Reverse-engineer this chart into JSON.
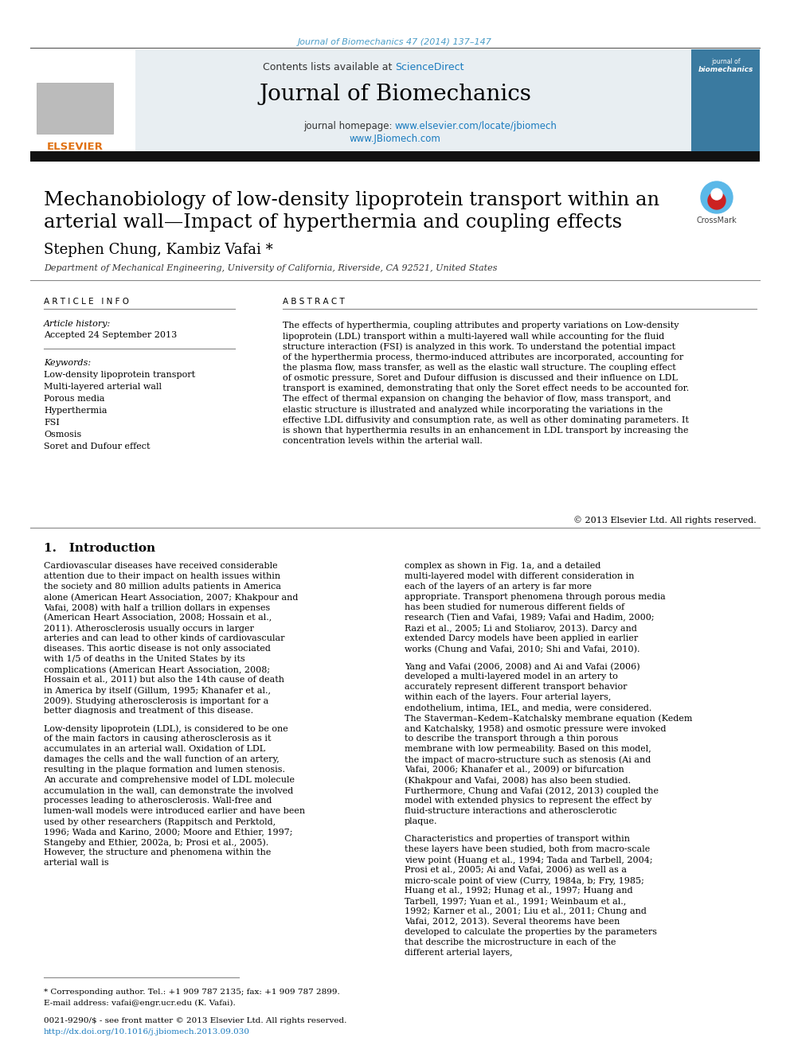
{
  "page_bg": "#ffffff",
  "top_journal_text": "Journal of Biomechanics 47 (2014) 137–147",
  "top_journal_color": "#4a9cc7",
  "header_bg": "#e8eef2",
  "header_contents": "Contents lists available at ",
  "header_sciencedirect": "ScienceDirect",
  "header_sciencedirect_color": "#1a7bbf",
  "journal_title": "Journal of Biomechanics",
  "journal_homepage_label": "journal homepage: ",
  "journal_url1": "www.elsevier.com/locate/jbiomech",
  "journal_url2": "www.JBiomech.com",
  "journal_url_color": "#1a7bbf",
  "black_bar_color": "#111111",
  "paper_title_line1": "Mechanobiology of low-density lipoprotein transport within an",
  "paper_title_line2": "arterial wall—Impact of hyperthermia and coupling effects",
  "paper_title_color": "#000000",
  "authors": "Stephen Chung, Kambiz Vafai",
  "authors_color": "#000000",
  "affiliation": "Department of Mechanical Engineering, University of California, Riverside, CA 92521, United States",
  "affiliation_color": "#333333",
  "article_history_label": "Article history:",
  "article_history_value": "Accepted 24 September 2013",
  "keywords_label": "Keywords:",
  "keywords": [
    "Low-density lipoprotein transport",
    "Multi-layered arterial wall",
    "Porous media",
    "Hyperthermia",
    "FSI",
    "Osmosis",
    "Soret and Dufour effect"
  ],
  "abstract_text": "The effects of hyperthermia, coupling attributes and property variations on Low-density lipoprotein (LDL) transport within a multi-layered wall while accounting for the fluid structure interaction (FSI) is analyzed in this work. To understand the potential impact of the hyperthermia process, thermo-induced attributes are incorporated, accounting for the plasma flow, mass transfer, as well as the elastic wall structure. The coupling effect of osmotic pressure, Soret and Dufour diffusion is discussed and their influence on LDL transport is examined, demonstrating that only the Soret effect needs to be accounted for. The effect of thermal expansion on changing the behavior of flow, mass transport, and elastic structure is illustrated and analyzed while incorporating the variations in the effective LDL diffusivity and consumption rate, as well as other dominating parameters. It is shown that hyperthermia results in an enhancement in LDL transport by increasing the concentration levels within the arterial wall.",
  "copyright_text": "© 2013 Elsevier Ltd. All rights reserved.",
  "intro_heading": "1.   Introduction",
  "intro_col1": "Cardiovascular diseases have received considerable attention due to their impact on health issues within the society and 80 million adults patients in America alone (American Heart Association, 2007; Khakpour and Vafai, 2008) with half a trillion dollars in expenses (American Heart Association, 2008; Hossain et al., 2011). Atherosclerosis usually occurs in larger arteries and can lead to other kinds of cardiovascular diseases. This aortic disease is not only associated with 1/5 of deaths in the United States by its complications (American Heart Association, 2008; Hossain et al., 2011) but also the 14th cause of death in America by itself (Gillum, 1995; Khanafer et al., 2009). Studying atherosclerosis is important for a better diagnosis and treatment of this disease.\n\nLow-density lipoprotein (LDL), is considered to be one of the main factors in causing atherosclerosis as it accumulates in an arterial wall. Oxidation of LDL damages the cells and the wall function of an artery, resulting in the plaque formation and lumen stenosis. An accurate and comprehensive model of LDL molecule accumulation in the wall, can demonstrate the involved processes leading to atherosclerosis. Wall-free and lumen-wall models were introduced earlier and have been used by other researchers (Rappitsch and Perktold, 1996; Wada and Karino, 2000; Moore and Ethier, 1997; Stangeby and Ethier, 2002a, b; Prosi et al., 2005). However, the structure and phenomena within the arterial wall is",
  "intro_col2": "complex as shown in Fig. 1a, and a detailed multi-layered model with different consideration in each of the layers of an artery is far more appropriate. Transport phenomena through porous media has been studied for numerous different fields of research (Tien and Vafai, 1989; Vafai and Hadim, 2000; Razi et al., 2005; Li and Stoliarov, 2013). Darcy and extended Darcy models have been applied in earlier works (Chung and Vafai, 2010; Shi and Vafai, 2010).\n\nYang and Vafai (2006, 2008) and Ai and Vafai (2006) developed a multi-layered model in an artery to accurately represent different transport behavior within each of the layers. Four arterial layers, endothelium, intima, IEL, and media, were considered. The Staverman–Kedem–Katchalsky membrane equation (Kedem and Katchalsky, 1958) and osmotic pressure were invoked to describe the transport through a thin porous membrane with low permeability. Based on this model, the impact of macro-structure such as stenosis (Ai and Vafai, 2006; Khanafer et al., 2009) or bifurcation (Khakpour and Vafai, 2008) has also been studied. Furthermore, Chung and Vafai (2012, 2013) coupled the model with extended physics to represent the effect by fluid-structure interactions and atherosclerotic plaque.\n\nCharacteristics and properties of transport within these layers have been studied, both from macro-scale view point (Huang et al., 1994; Tada and Tarbell, 2004; Prosi et al., 2005; Ai and Vafai, 2006) as well as a micro-scale point of view (Curry, 1984a, b; Fry, 1985; Huang et al., 1992; Hunag et al., 1997; Huang and Tarbell, 1997; Yuan et al., 1991; Weinbaum et al., 1992; Karner et al., 2001; Liu et al., 2011; Chung and Vafai, 2012, 2013). Several theorems have been developed to calculate the properties by the parameters that describe the microstructure in each of the different arterial layers,",
  "footnote_line1": "* Corresponding author. Tel.: +1 909 787 2135; fax: +1 909 787 2899.",
  "footnote_line2": "E-mail address: vafai@engr.ucr.edu (K. Vafai).",
  "footnote_line3": "0021-9290/$ - see front matter © 2013 Elsevier Ltd. All rights reserved.",
  "footnote_url": "http://dx.doi.org/10.1016/j.jbiomech.2013.09.030",
  "footnote_url_color": "#1a7bbf"
}
